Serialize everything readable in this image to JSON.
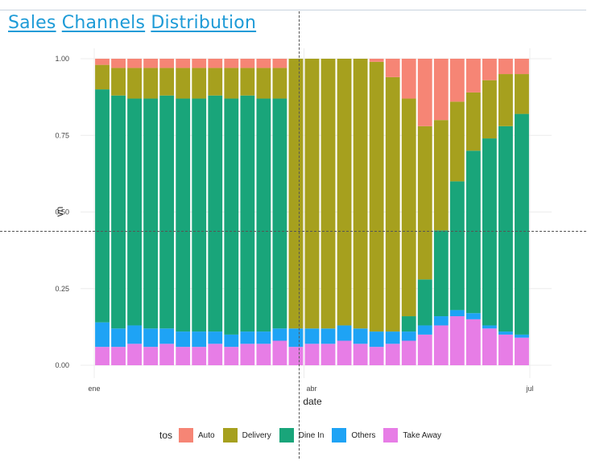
{
  "title_words": [
    "Sales",
    "Channels",
    "Distribution"
  ],
  "chart_data": {
    "type": "bar",
    "stacked": true,
    "normalized": true,
    "xlabel": "date",
    "ylabel": "vn",
    "ylim": [
      0,
      1
    ],
    "yticks": [
      0,
      0.25,
      0.5,
      0.75,
      1
    ],
    "ytick_labels": [
      "0.00",
      "0.25",
      "0.50",
      "0.75",
      "1.00"
    ],
    "xticks": [
      {
        "label": "ene",
        "week": 0
      },
      {
        "label": "abr",
        "week": 13
      },
      {
        "label": "jul",
        "week": 26
      }
    ],
    "grid": true,
    "legend_title": "tos",
    "legend_position": "bottom",
    "series": [
      {
        "name": "Take Away",
        "color": "#e77de6",
        "values": [
          0.06,
          0.06,
          0.07,
          0.06,
          0.07,
          0.06,
          0.06,
          0.07,
          0.06,
          0.07,
          0.07,
          0.08,
          0.06,
          0.07,
          0.07,
          0.08,
          0.07,
          0.06,
          0.07,
          0.08,
          0.1,
          0.13,
          0.16,
          0.15,
          0.12,
          0.1,
          0.09
        ]
      },
      {
        "name": "Others",
        "color": "#1ea3f5",
        "values": [
          0.08,
          0.06,
          0.06,
          0.06,
          0.05,
          0.05,
          0.05,
          0.04,
          0.04,
          0.04,
          0.04,
          0.04,
          0.06,
          0.05,
          0.05,
          0.05,
          0.05,
          0.05,
          0.04,
          0.03,
          0.03,
          0.03,
          0.02,
          0.02,
          0.01,
          0.01,
          0.01
        ]
      },
      {
        "name": "Dine In",
        "color": "#19a57a",
        "values": [
          0.76,
          0.76,
          0.74,
          0.75,
          0.76,
          0.76,
          0.76,
          0.77,
          0.77,
          0.77,
          0.76,
          0.75,
          0.0,
          0.0,
          0.0,
          0.0,
          0.0,
          0.0,
          0.0,
          0.05,
          0.15,
          0.28,
          0.42,
          0.53,
          0.61,
          0.67,
          0.72
        ]
      },
      {
        "name": "Delivery",
        "color": "#a6a01e",
        "values": [
          0.08,
          0.09,
          0.1,
          0.1,
          0.09,
          0.1,
          0.1,
          0.09,
          0.1,
          0.09,
          0.1,
          0.1,
          0.88,
          0.88,
          0.88,
          0.87,
          0.88,
          0.88,
          0.83,
          0.71,
          0.5,
          0.36,
          0.26,
          0.19,
          0.19,
          0.17,
          0.13
        ]
      },
      {
        "name": "Auto",
        "color": "#f68575",
        "values": [
          0.02,
          0.03,
          0.03,
          0.03,
          0.03,
          0.03,
          0.03,
          0.03,
          0.03,
          0.03,
          0.03,
          0.03,
          0.0,
          0.0,
          0.0,
          0.0,
          0.0,
          0.01,
          0.06,
          0.13,
          0.22,
          0.2,
          0.14,
          0.11,
          0.07,
          0.05,
          0.05
        ]
      }
    ]
  }
}
